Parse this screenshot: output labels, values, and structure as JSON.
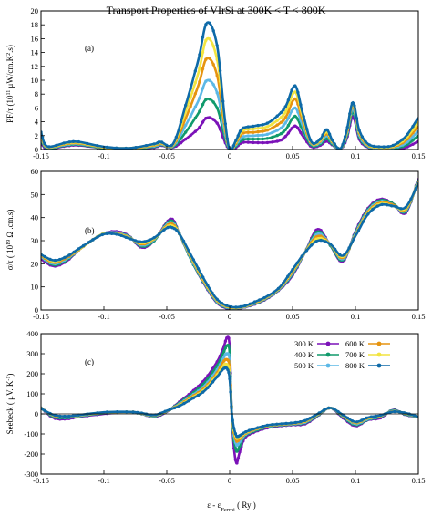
{
  "colors": {
    "300K": "#7b12b8",
    "400K": "#109a6c",
    "500K": "#5cb8e6",
    "600K": "#e69410",
    "700K": "#f2e440",
    "800K": "#0e6aa8"
  },
  "chart_data": {
    "title": "Transport Properties of VIrSi at  300K < T < 800K",
    "xlabel": "ε - ε",
    "xlabel_sub": "Fermi",
    "xlabel_unit": " ( Ry )",
    "legend": {
      "position": "top-right of panel (c)",
      "entries": [
        "300 K",
        "400 K",
        "500 K",
        "600 K",
        "700 K",
        "800 K"
      ]
    },
    "panels": [
      {
        "tag": "(a)",
        "type": "line",
        "ylabel": "PF/τ (10 μW/cm.K .s)",
        "xlim": [
          -0.15,
          0.15
        ],
        "ylim": [
          0,
          20
        ],
        "xticks": [
          -0.15,
          -0.1,
          -0.05,
          0,
          0.05,
          0.1,
          0.15
        ],
        "yticks": [
          0,
          2,
          4,
          6,
          8,
          10,
          12,
          14,
          16,
          18,
          20
        ],
        "x": [
          -0.15,
          -0.145,
          -0.13,
          -0.12,
          -0.1,
          -0.08,
          -0.06,
          -0.055,
          -0.045,
          -0.035,
          -0.025,
          -0.018,
          -0.01,
          -0.004,
          0,
          0.005,
          0.01,
          0.02,
          0.03,
          0.04,
          0.045,
          0.052,
          0.058,
          0.065,
          0.072,
          0.077,
          0.082,
          0.088,
          0.093,
          0.098,
          0.103,
          0.11,
          0.12,
          0.13,
          0.14,
          0.15
        ],
        "series": [
          {
            "name": "300 K",
            "values": [
              1.0,
              0.1,
              0.5,
              0.6,
              0.2,
              0.1,
              0.3,
              0.6,
              0.3,
              1.5,
              3.0,
              4.6,
              3.8,
              1.2,
              0.0,
              0.3,
              1.0,
              1.0,
              1.0,
              1.3,
              2.0,
              3.4,
              2.0,
              0.4,
              0.6,
              1.2,
              0.6,
              0.1,
              1.5,
              4.8,
              1.5,
              0.3,
              0.1,
              0.1,
              0.3,
              1.2
            ]
          },
          {
            "name": "400 K",
            "values": [
              1.4,
              0.2,
              0.6,
              0.7,
              0.2,
              0.1,
              0.4,
              0.7,
              0.4,
              2.5,
              5.2,
              7.3,
              6.0,
              1.9,
              0.0,
              0.5,
              1.4,
              1.5,
              1.6,
              2.2,
              3.0,
              4.8,
              2.8,
              0.6,
              0.8,
              1.6,
              0.7,
              0.1,
              1.8,
              5.5,
              1.8,
              0.4,
              0.2,
              0.2,
              0.6,
              2.0
            ]
          },
          {
            "name": "500 K",
            "values": [
              1.7,
              0.3,
              0.7,
              0.8,
              0.3,
              0.15,
              0.5,
              0.8,
              0.5,
              3.5,
              7.0,
              10.0,
              8.2,
              2.6,
              0.0,
              0.7,
              1.8,
              2.0,
              2.2,
              3.0,
              4.0,
              6.0,
              3.5,
              0.8,
              1.0,
              2.0,
              0.9,
              0.1,
              2.1,
              6.0,
              2.1,
              0.5,
              0.2,
              0.3,
              0.9,
              2.7
            ]
          },
          {
            "name": "600 K",
            "values": [
              2.0,
              0.35,
              0.8,
              0.9,
              0.3,
              0.15,
              0.6,
              0.9,
              0.6,
              4.5,
              9.2,
              13.2,
              10.7,
              3.3,
              0.0,
              0.9,
              2.3,
              2.5,
              2.8,
              3.8,
              4.8,
              7.3,
              4.2,
              0.9,
              1.2,
              2.3,
              1.0,
              0.1,
              2.3,
              6.4,
              2.4,
              0.6,
              0.3,
              0.4,
              1.3,
              3.4
            ]
          },
          {
            "name": "700 K",
            "values": [
              2.3,
              0.4,
              0.9,
              1.0,
              0.35,
              0.2,
              0.7,
              1.0,
              0.7,
              5.5,
              11.0,
              16.0,
              13.0,
              4.0,
              0.0,
              1.1,
              2.7,
              3.0,
              3.3,
              4.5,
              5.6,
              8.3,
              4.8,
              1.0,
              1.3,
              2.6,
              1.1,
              0.1,
              2.5,
              6.6,
              2.6,
              0.7,
              0.3,
              0.5,
              1.6,
              4.0
            ]
          },
          {
            "name": "800 K",
            "values": [
              2.5,
              0.45,
              1.0,
              1.1,
              0.4,
              0.2,
              0.8,
              1.1,
              0.8,
              6.4,
              12.9,
              18.3,
              15.0,
              4.6,
              0.0,
              1.3,
              3.0,
              3.4,
              3.8,
              5.2,
              6.4,
              9.2,
              5.3,
              1.1,
              1.5,
              2.9,
              1.2,
              0.1,
              2.7,
              6.8,
              2.8,
              0.8,
              0.4,
              0.6,
              1.9,
              4.6
            ]
          }
        ]
      },
      {
        "tag": "(b)",
        "type": "line",
        "ylabel": "σ/τ ( 10 Ω .cm.s)",
        "xlim": [
          -0.15,
          0.15
        ],
        "ylim": [
          0,
          60
        ],
        "xticks": [
          -0.15,
          -0.1,
          -0.05,
          0,
          0.05,
          0.1,
          0.15
        ],
        "yticks": [
          0,
          10,
          20,
          30,
          40,
          50,
          60
        ],
        "x": [
          -0.15,
          -0.14,
          -0.13,
          -0.12,
          -0.11,
          -0.1,
          -0.09,
          -0.08,
          -0.07,
          -0.06,
          -0.05,
          -0.045,
          -0.04,
          -0.03,
          -0.02,
          -0.01,
          0,
          0.01,
          0.02,
          0.03,
          0.04,
          0.05,
          0.06,
          0.07,
          0.08,
          0.09,
          0.1,
          0.11,
          0.12,
          0.13,
          0.14,
          0.15
        ],
        "series": [
          {
            "name": "300 K",
            "values": [
              22,
              19,
              21,
              26,
              30,
              33,
              34,
              32,
              27,
              30,
              38,
              39,
              33,
              21,
              11,
              3,
              0.5,
              1,
              2.5,
              5,
              9,
              15,
              25,
              35,
              28,
              21,
              34,
              44,
              48,
              46,
              42,
              57
            ]
          },
          {
            "name": "400 K",
            "values": [
              23,
              19.5,
              21.5,
              26,
              30,
              33,
              33.5,
              31.8,
              27.5,
              30,
              37.5,
              38.2,
              33,
              21,
              11.3,
              3.3,
              0.7,
              1.1,
              2.7,
              5.2,
              9.2,
              15.5,
              25,
              34,
              28,
              21.5,
              33.5,
              43.5,
              47.5,
              46,
              42.5,
              56.5
            ]
          },
          {
            "name": "500 K",
            "values": [
              23,
              20,
              22,
              26,
              30,
              33,
              33.5,
              31.6,
              28,
              30.5,
              37,
              37.5,
              33,
              21.5,
              11.6,
              3.6,
              0.9,
              1.2,
              2.9,
              5.4,
              9.4,
              16,
              25,
              33,
              28.5,
              22,
              33,
              43,
              47,
              45.5,
              43,
              56
            ]
          },
          {
            "name": "600 K",
            "values": [
              23.5,
              20.5,
              22.5,
              26,
              30,
              33,
              33.2,
              31.4,
              28.5,
              30.8,
              36.5,
              37,
              33,
              22,
              12,
              4,
              1.1,
              1.3,
              3.1,
              5.6,
              9.6,
              16.5,
              25,
              32,
              28.5,
              22.5,
              32.5,
              42.5,
              46.5,
              45.5,
              43.5,
              55.5
            ]
          },
          {
            "name": "700 K",
            "values": [
              24,
              21,
              23,
              26.2,
              30,
              33,
              33,
              31.2,
              29,
              31,
              36,
              36.2,
              33,
              22.5,
              12.5,
              4.3,
              1.3,
              1.4,
              3.3,
              5.8,
              9.8,
              17,
              25,
              31,
              28.5,
              23,
              32.2,
              42,
              46,
              45,
              44,
              55.5
            ]
          },
          {
            "name": "800 K",
            "values": [
              24,
              21.5,
              23,
              26.5,
              30,
              32.8,
              32.8,
              31,
              29.5,
              31.3,
              35.5,
              35.5,
              33,
              23,
              13,
              4.6,
              1.5,
              1.5,
              3.5,
              6,
              10,
              17.5,
              25,
              30,
              28.5,
              23.5,
              32,
              41.5,
              45.5,
              45,
              44.5,
              55
            ]
          }
        ]
      },
      {
        "tag": "(c)",
        "type": "line",
        "ylabel": "Seebeck ( μV. K )",
        "xlim": [
          -0.15,
          0.15
        ],
        "ylim": [
          -300,
          400
        ],
        "xticks": [
          -0.15,
          -0.1,
          -0.05,
          0,
          0.05,
          0.1,
          0.15
        ],
        "yticks": [
          -300,
          -200,
          -100,
          0,
          100,
          200,
          300,
          400
        ],
        "x": [
          -0.15,
          -0.14,
          -0.13,
          -0.12,
          -0.1,
          -0.08,
          -0.07,
          -0.06,
          -0.05,
          -0.04,
          -0.03,
          -0.02,
          -0.01,
          -0.005,
          -0.002,
          0,
          0.002,
          0.005,
          0.008,
          0.012,
          0.02,
          0.03,
          0.04,
          0.05,
          0.06,
          0.07,
          0.08,
          0.09,
          0.1,
          0.11,
          0.12,
          0.13,
          0.14,
          0.15
        ],
        "series": [
          {
            "name": "300 K",
            "values": [
              30,
              -20,
              -25,
              -15,
              0,
              10,
              0,
              -15,
              10,
              60,
              110,
              170,
              260,
              330,
              380,
              330,
              -50,
              -240,
              -190,
              -120,
              -90,
              -70,
              -60,
              -55,
              -50,
              -10,
              30,
              -20,
              -60,
              -30,
              -20,
              20,
              -5,
              -15
            ]
          },
          {
            "name": "400 K",
            "values": [
              30,
              -15,
              -20,
              -12,
              3,
              10,
              0,
              -12,
              12,
              55,
              100,
              155,
              240,
              305,
              340,
              300,
              -40,
              -180,
              -160,
              -110,
              -85,
              -65,
              -57,
              -52,
              -45,
              -8,
              30,
              -15,
              -55,
              -28,
              -15,
              18,
              -3,
              -15
            ]
          },
          {
            "name": "500 K",
            "values": [
              28,
              -10,
              -17,
              -10,
              5,
              10,
              0,
              -10,
              13,
              50,
              92,
              140,
              220,
              280,
              300,
              260,
              -30,
              -150,
              -140,
              -105,
              -80,
              -62,
              -55,
              -50,
              -42,
              -5,
              30,
              -10,
              -50,
              -25,
              -12,
              15,
              0,
              -15
            ]
          },
          {
            "name": "600 K",
            "values": [
              28,
              -8,
              -15,
              -8,
              6,
              10,
              2,
              -8,
              14,
              46,
              86,
              130,
              205,
              260,
              270,
              230,
              -25,
              -130,
              -125,
              -100,
              -78,
              -60,
              -53,
              -48,
              -38,
              -3,
              30,
              -8,
              -45,
              -22,
              -10,
              13,
              2,
              -15
            ]
          },
          {
            "name": "700 K",
            "values": [
              27,
              -6,
              -13,
              -7,
              7,
              10,
              3,
              -7,
              15,
              43,
              80,
              122,
              195,
              240,
              245,
              200,
              -20,
              -115,
              -115,
              -96,
              -75,
              -58,
              -51,
              -46,
              -35,
              -1,
              30,
              -6,
              -42,
              -20,
              -8,
              12,
              3,
              -15
            ]
          },
          {
            "name": "800 K",
            "values": [
              27,
              -5,
              -12,
              -6,
              8,
              10,
              4,
              -6,
              16,
              40,
              75,
              115,
              185,
              225,
              225,
              175,
              -15,
              -105,
              -108,
              -92,
              -73,
              -57,
              -50,
              -45,
              -33,
              0,
              30,
              -5,
              -40,
              -18,
              -7,
              11,
              4,
              -15
            ]
          }
        ]
      }
    ]
  },
  "axis_text": {
    "ylabel_a_main": "PF/τ (10",
    "ylabel_a_sup1": "11",
    "ylabel_a_mid": " μW/cm.K",
    "ylabel_a_sup2": "2",
    "ylabel_a_end": ".s)",
    "ylabel_b_main": "σ/τ ( 10",
    "ylabel_b_sup": "19",
    "ylabel_b_end": " Ω .cm.s)",
    "ylabel_c_main": "Seebeck ( μV. K",
    "ylabel_c_sup": "-1",
    "ylabel_c_end": ")"
  }
}
